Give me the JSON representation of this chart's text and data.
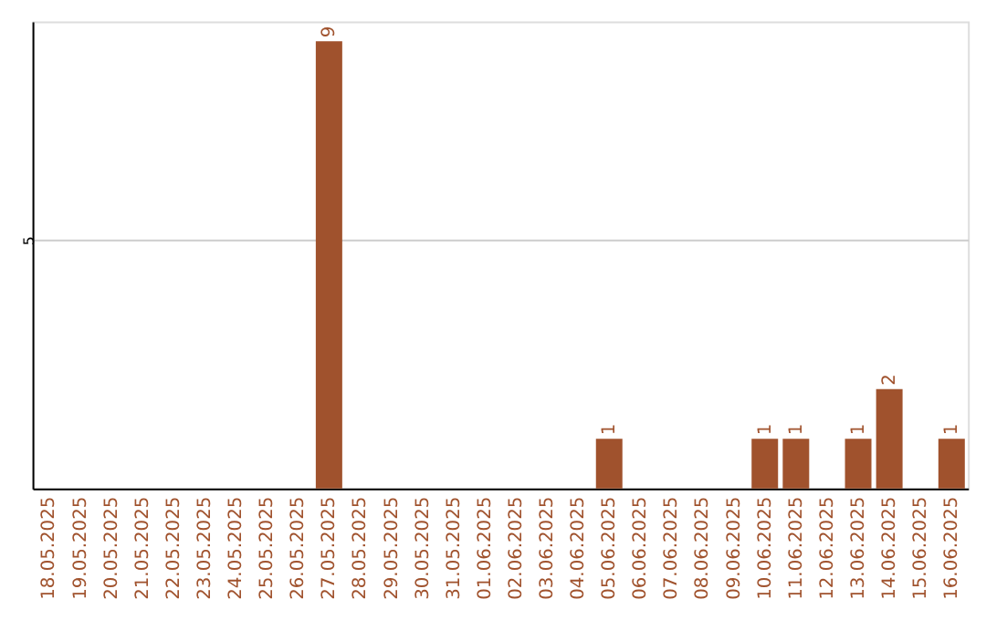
{
  "chart_data": {
    "type": "bar",
    "categories": [
      "18.05.2025",
      "19.05.2025",
      "20.05.2025",
      "21.05.2025",
      "22.05.2025",
      "23.05.2025",
      "24.05.2025",
      "25.05.2025",
      "26.05.2025",
      "27.05.2025",
      "28.05.2025",
      "29.05.2025",
      "30.05.2025",
      "31.05.2025",
      "01.06.2025",
      "02.06.2025",
      "03.06.2025",
      "04.06.2025",
      "05.06.2025",
      "06.06.2025",
      "07.06.2025",
      "08.06.2025",
      "09.06.2025",
      "10.06.2025",
      "11.06.2025",
      "12.06.2025",
      "13.06.2025",
      "14.06.2025",
      "15.06.2025",
      "16.06.2025"
    ],
    "values": [
      0,
      0,
      0,
      0,
      0,
      0,
      0,
      0,
      0,
      9,
      0,
      0,
      0,
      0,
      0,
      0,
      0,
      0,
      1,
      0,
      0,
      0,
      0,
      1,
      1,
      0,
      1,
      2,
      0,
      1
    ],
    "value_labels": [
      null,
      null,
      null,
      null,
      null,
      null,
      null,
      null,
      null,
      "9",
      null,
      null,
      null,
      null,
      null,
      null,
      null,
      null,
      "1",
      null,
      null,
      null,
      null,
      "1",
      "1",
      null,
      "1",
      "2",
      null,
      "1"
    ],
    "color": "#a0522d",
    "ylim": [
      0,
      9.4
    ],
    "yticks": [
      5
    ],
    "grid": "y"
  }
}
